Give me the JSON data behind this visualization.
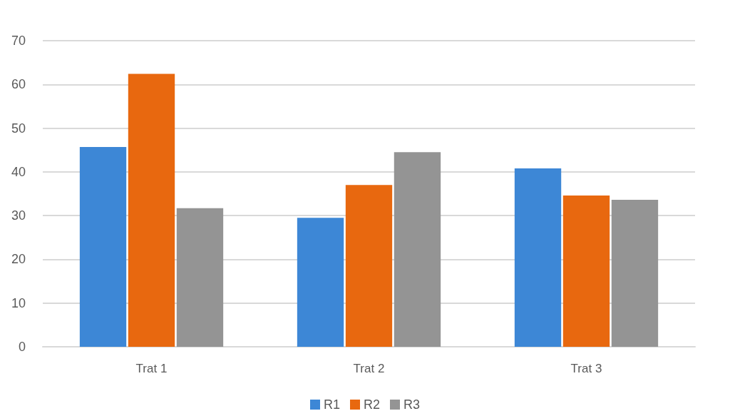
{
  "chart_data": {
    "type": "bar",
    "categories": [
      "Trat 1",
      "Trat 2",
      "Trat 3"
    ],
    "series": [
      {
        "name": "R1",
        "color": "#3d87d6",
        "values": [
          45.7,
          29.5,
          40.8
        ]
      },
      {
        "name": "R2",
        "color": "#e8680f",
        "values": [
          62.4,
          37,
          34.6
        ]
      },
      {
        "name": "R3",
        "color": "#949494",
        "values": [
          31.7,
          44.5,
          33.6
        ]
      }
    ],
    "ylim": [
      0,
      70
    ],
    "yticks": [
      0,
      10,
      20,
      30,
      40,
      50,
      60,
      70
    ],
    "grid": "y",
    "legend": "bottom"
  }
}
